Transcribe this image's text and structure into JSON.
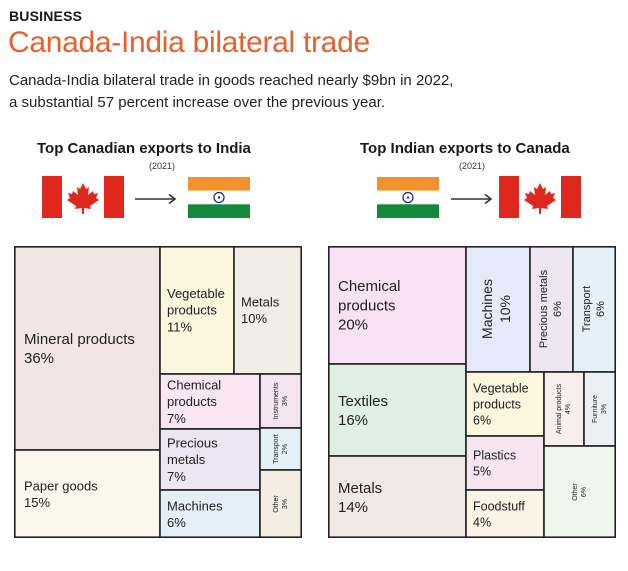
{
  "header": {
    "kicker": "BUSINESS",
    "title": "Canada-India bilateral trade",
    "subtitle_line1": "Canada-India bilateral trade in goods reached nearly $9bn in 2022,",
    "subtitle_line2": "a substantial 57 percent increase over the previous year."
  },
  "colors": {
    "accent": "#e8602c",
    "canada_red": "#e0271e",
    "india_saffron": "#f4912c",
    "india_green": "#138a3b",
    "chakra_blue": "#1f2f86"
  },
  "panels": [
    {
      "title": "Top Canadian exports to India",
      "year": "(2021)",
      "from_flag": "canada-flag",
      "to_flag": "india-flag"
    },
    {
      "title": "Top Indian exports to Canada",
      "year": "(2021)",
      "from_flag": "india-flag",
      "to_flag": "canada-flag"
    }
  ],
  "chart_data": [
    {
      "type": "treemap",
      "title": "Top Canadian exports to India",
      "unit": "%",
      "items": [
        {
          "label": "Mineral products",
          "value": 36,
          "display": "36%",
          "color": "#f3e5e3"
        },
        {
          "label": "Paper goods",
          "value": 15,
          "display": "15%",
          "color": "#fcf6ec"
        },
        {
          "label": "Vegetable products",
          "value": 11,
          "display": "11%",
          "color": "#fbf6dd"
        },
        {
          "label": "Metals",
          "value": 10,
          "display": "10%",
          "color": "#f3ede8"
        },
        {
          "label": "Chemical products",
          "value": 7,
          "display": "7%",
          "color": "#f9e6f2"
        },
        {
          "label": "Precious metals",
          "value": 7,
          "display": "7%",
          "color": "#ece6f4"
        },
        {
          "label": "Machines",
          "value": 6,
          "display": "6%",
          "color": "#e5eff9"
        },
        {
          "label": "Instruments",
          "value": 3,
          "display": "3%",
          "color": "#f4e4ef"
        },
        {
          "label": "Transport",
          "value": 2,
          "display": "2%",
          "color": "#e4f0f8"
        },
        {
          "label": "Other",
          "value": 3,
          "display": "3%",
          "color": "#f3ede4"
        }
      ]
    },
    {
      "type": "treemap",
      "title": "Top Indian exports to Canada",
      "unit": "%",
      "items": [
        {
          "label": "Chemical products",
          "value": 20,
          "display": "20%",
          "color": "#f6e2f4"
        },
        {
          "label": "Textiles",
          "value": 16,
          "display": "16%",
          "color": "#dff0e2"
        },
        {
          "label": "Metals",
          "value": 14,
          "display": "14%",
          "color": "#f1e7e4"
        },
        {
          "label": "Machines",
          "value": 10,
          "display": "10%",
          "color": "#e4eaf9"
        },
        {
          "label": "Precious metals",
          "value": 6,
          "display": "6%",
          "color": "#eee5f3"
        },
        {
          "label": "Transport",
          "value": 6,
          "display": "6%",
          "color": "#e5f0f8"
        },
        {
          "label": "Vegetable products",
          "value": 6,
          "display": "6%",
          "color": "#fbf6dd"
        },
        {
          "label": "Plastics",
          "value": 5,
          "display": "5%",
          "color": "#f7e6f2"
        },
        {
          "label": "Foodstuff",
          "value": 4,
          "display": "4%",
          "color": "#fbf3e6"
        },
        {
          "label": "Animal products",
          "value": 4,
          "display": "4%",
          "color": "#f8eeee"
        },
        {
          "label": "Furniture",
          "value": 3,
          "display": "3%",
          "color": "#ecf0f5"
        },
        {
          "label": "Other",
          "value": 6,
          "display": "6%",
          "color": "#eef6ee"
        }
      ]
    }
  ]
}
